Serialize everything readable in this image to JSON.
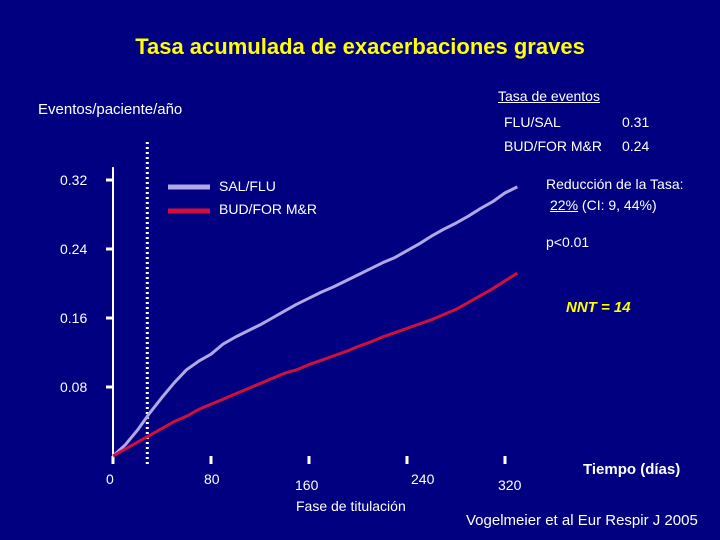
{
  "title": "Tasa acumulada de exacerbaciones graves",
  "chart_data": {
    "type": "line",
    "ylabel": "Eventos/paciente/año",
    "xlabel": "Tiempo (días)",
    "y_ticks": [
      "0.08",
      "0.16",
      "0.24",
      "0.32"
    ],
    "y_tick_values": [
      0.08,
      0.16,
      0.24,
      0.32
    ],
    "x_ticks": [
      "0",
      "80",
      "160",
      "240",
      "320"
    ],
    "x_tick_values": [
      0,
      80,
      160,
      240,
      320
    ],
    "xlim": [
      0,
      330
    ],
    "ylim": [
      0,
      0.32
    ],
    "reference_line": {
      "x": 28,
      "label": "Fase de titulación"
    },
    "series": [
      {
        "name": "SAL/FLU",
        "color": "#b0a8e8",
        "x": [
          0,
          10,
          20,
          30,
          40,
          50,
          60,
          70,
          80,
          90,
          100,
          110,
          120,
          130,
          140,
          150,
          160,
          170,
          180,
          190,
          200,
          210,
          220,
          230,
          240,
          250,
          260,
          270,
          280,
          290,
          300,
          310,
          320,
          330
        ],
        "values": [
          0.0,
          0.013,
          0.03,
          0.05,
          0.068,
          0.085,
          0.1,
          0.11,
          0.118,
          0.13,
          0.138,
          0.145,
          0.152,
          0.16,
          0.168,
          0.176,
          0.183,
          0.19,
          0.196,
          0.203,
          0.21,
          0.217,
          0.224,
          0.23,
          0.238,
          0.246,
          0.255,
          0.263,
          0.27,
          0.278,
          0.287,
          0.295,
          0.305,
          0.312
        ]
      },
      {
        "name": "BUD/FOR M&R",
        "color": "#d0103a",
        "x": [
          0,
          10,
          20,
          30,
          40,
          50,
          60,
          70,
          80,
          90,
          100,
          110,
          120,
          130,
          140,
          150,
          160,
          170,
          180,
          190,
          200,
          210,
          220,
          230,
          240,
          250,
          260,
          270,
          280,
          290,
          300,
          310,
          320,
          330
        ],
        "values": [
          0.0,
          0.008,
          0.016,
          0.024,
          0.032,
          0.04,
          0.046,
          0.054,
          0.06,
          0.066,
          0.072,
          0.078,
          0.084,
          0.09,
          0.096,
          0.1,
          0.106,
          0.111,
          0.116,
          0.121,
          0.127,
          0.132,
          0.138,
          0.143,
          0.148,
          0.153,
          0.158,
          0.164,
          0.17,
          0.178,
          0.186,
          0.194,
          0.203,
          0.212
        ]
      }
    ],
    "legend_position": "top-center"
  },
  "rates": {
    "title": "Tasa de eventos",
    "rows": [
      {
        "name": "FLU/SAL",
        "value": "0.31"
      },
      {
        "name": "BUD/FOR M&R",
        "value": "0.24"
      }
    ]
  },
  "annotations": {
    "reduction_line1": "Reducción de la Tasa:",
    "reduction_pct": "22%",
    "reduction_ci": " (CI: 9, 44%)",
    "p_value": "p<0.01",
    "nnt": "NNT = 14"
  },
  "citation": "Vogelmeier et al Eur Respir J 2005",
  "colors": {
    "background": "#000080",
    "title": "#ffff00",
    "axis": "#ffffff"
  }
}
